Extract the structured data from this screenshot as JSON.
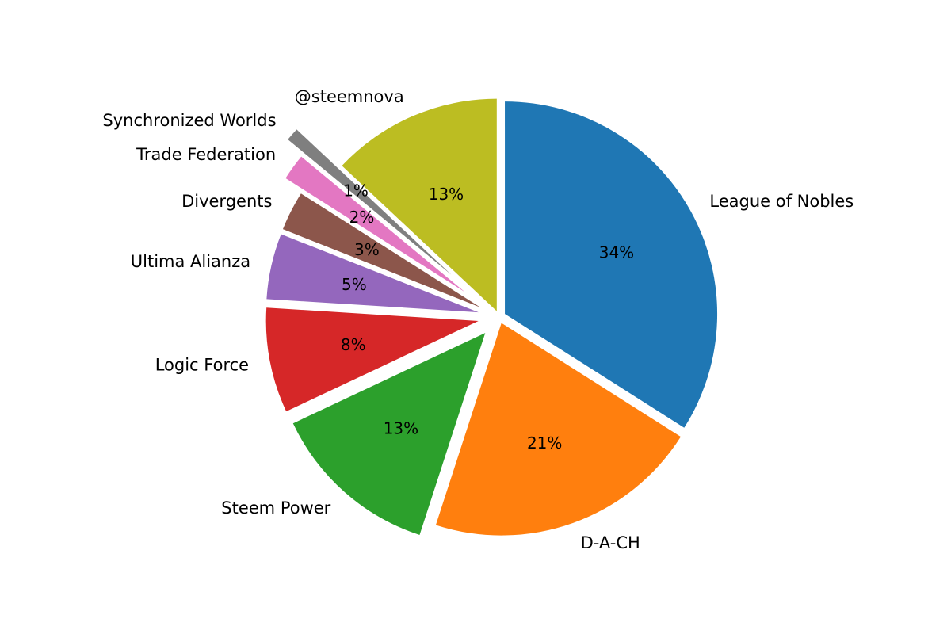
{
  "chart_data": {
    "type": "pie",
    "start_angle_deg": 90,
    "direction": "clockwise",
    "slices": [
      {
        "label": "League of Nobles",
        "pct": 34,
        "pct_label": "34%",
        "color": "#1f77b4",
        "explode": 0.03
      },
      {
        "label": "D-A-CH",
        "pct": 21,
        "pct_label": "21%",
        "color": "#ff7f0e",
        "explode": 0.03
      },
      {
        "label": "Steem Power",
        "pct": 13,
        "pct_label": "13%",
        "color": "#2ca02c",
        "explode": 0.1
      },
      {
        "label": "Logic Force",
        "pct": 8,
        "pct_label": "8%",
        "color": "#d62728",
        "explode": 0.1
      },
      {
        "label": "Ultima Alianza",
        "pct": 5,
        "pct_label": "5%",
        "color": "#9467bd",
        "explode": 0.1
      },
      {
        "label": "Divergents",
        "pct": 3,
        "pct_label": "3%",
        "color": "#8c564b",
        "explode": 0.1
      },
      {
        "label": "Trade Federation",
        "pct": 2,
        "pct_label": "2%",
        "color": "#e377c2",
        "explode": 0.2
      },
      {
        "label": "Synchronized Worlds",
        "pct": 1,
        "pct_label": "1%",
        "color": "#7f7f7f",
        "explode": 0.3
      },
      {
        "label": "@steemnova",
        "pct": 13,
        "pct_label": "13%",
        "color": "#bcbd22",
        "explode": 0.03
      }
    ]
  }
}
